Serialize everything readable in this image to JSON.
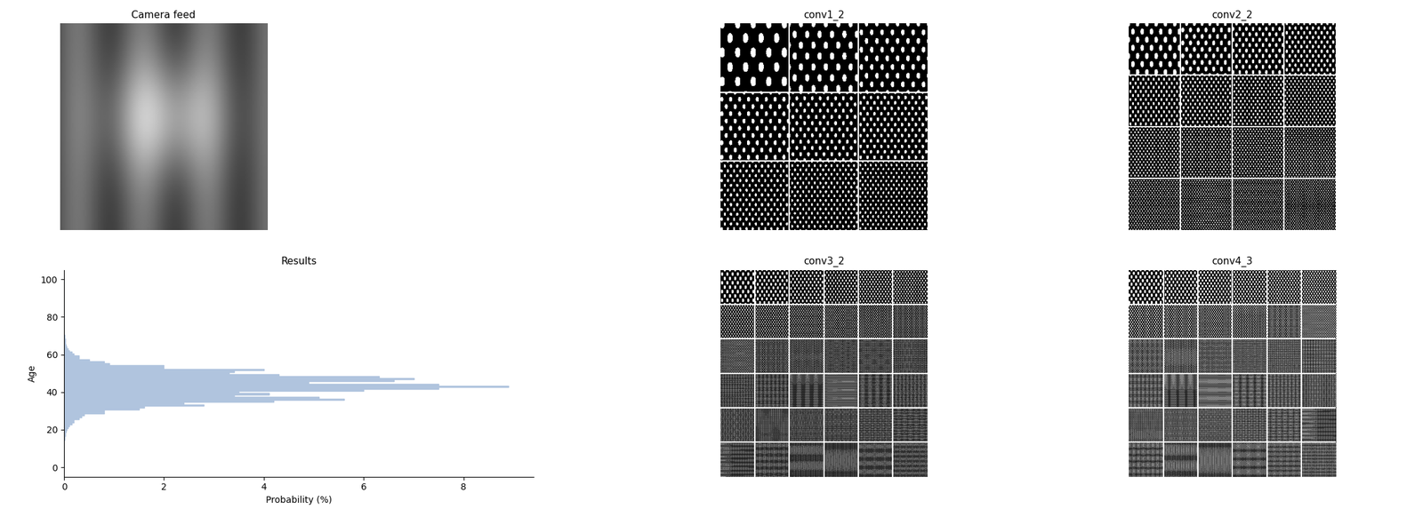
{
  "panels": [
    {
      "title": "Camera feed"
    },
    {
      "title": "conv1_2"
    },
    {
      "title": "conv2_2"
    },
    {
      "title": "conv3_2"
    },
    {
      "title": "conv4_3"
    }
  ],
  "chart_data": {
    "type": "bar",
    "orientation": "horizontal",
    "title": "Results",
    "x_label": "Probability (%)",
    "y_label": "Age",
    "x": [
      0,
      1,
      2,
      3,
      4,
      5,
      6,
      7,
      8,
      9,
      10,
      11,
      12,
      13,
      14,
      15,
      16,
      17,
      18,
      19,
      20,
      21,
      22,
      23,
      24,
      25,
      26,
      27,
      28,
      29,
      30,
      31,
      32,
      33,
      34,
      35,
      36,
      37,
      38,
      39,
      40,
      41,
      42,
      43,
      44,
      45,
      46,
      47,
      48,
      49,
      50,
      51,
      52,
      53,
      54,
      55,
      56,
      57,
      58,
      59,
      60,
      61,
      62,
      63,
      64,
      65,
      66,
      67,
      68,
      69,
      70,
      71,
      72,
      73,
      74,
      75,
      76,
      77,
      78,
      79,
      80,
      81,
      82,
      83,
      84,
      85,
      86,
      87,
      88,
      89,
      90,
      91,
      92,
      93,
      94,
      95,
      96,
      97,
      98,
      99,
      100
    ],
    "values": [
      0,
      0,
      0,
      0,
      0,
      0,
      0,
      0,
      0,
      0,
      0,
      0,
      0,
      0,
      0,
      0.01,
      0.01,
      0.02,
      0.03,
      0.04,
      0.05,
      0.08,
      0.1,
      0.15,
      0.2,
      0.2,
      0.3,
      0.35,
      0.4,
      0.8,
      0.8,
      1.5,
      1.6,
      2.8,
      2.4,
      4.2,
      5.6,
      5.1,
      3.4,
      4.1,
      3.5,
      6.0,
      7.5,
      8.9,
      7.5,
      4.9,
      6.6,
      7.0,
      6.3,
      4.3,
      3.3,
      3.4,
      4.0,
      2.0,
      2.0,
      0.9,
      0.8,
      0.5,
      0.3,
      0.3,
      0.2,
      0.15,
      0.1,
      0.08,
      0.05,
      0.04,
      0.03,
      0.02,
      0.02,
      0.01,
      0.01,
      0,
      0,
      0,
      0,
      0,
      0,
      0,
      0,
      0,
      0,
      0,
      0,
      0,
      0,
      0,
      0,
      0,
      0,
      0,
      0,
      0,
      0,
      0,
      0,
      0,
      0,
      0,
      0,
      0,
      0
    ],
    "color": "#b0c4de",
    "xlim": [
      0,
      9.4
    ],
    "xticks": [
      0,
      2,
      4,
      6,
      8
    ],
    "ylim": [
      -5,
      105
    ],
    "yticks": [
      0,
      20,
      40,
      60,
      80,
      100
    ],
    "grid": false
  }
}
